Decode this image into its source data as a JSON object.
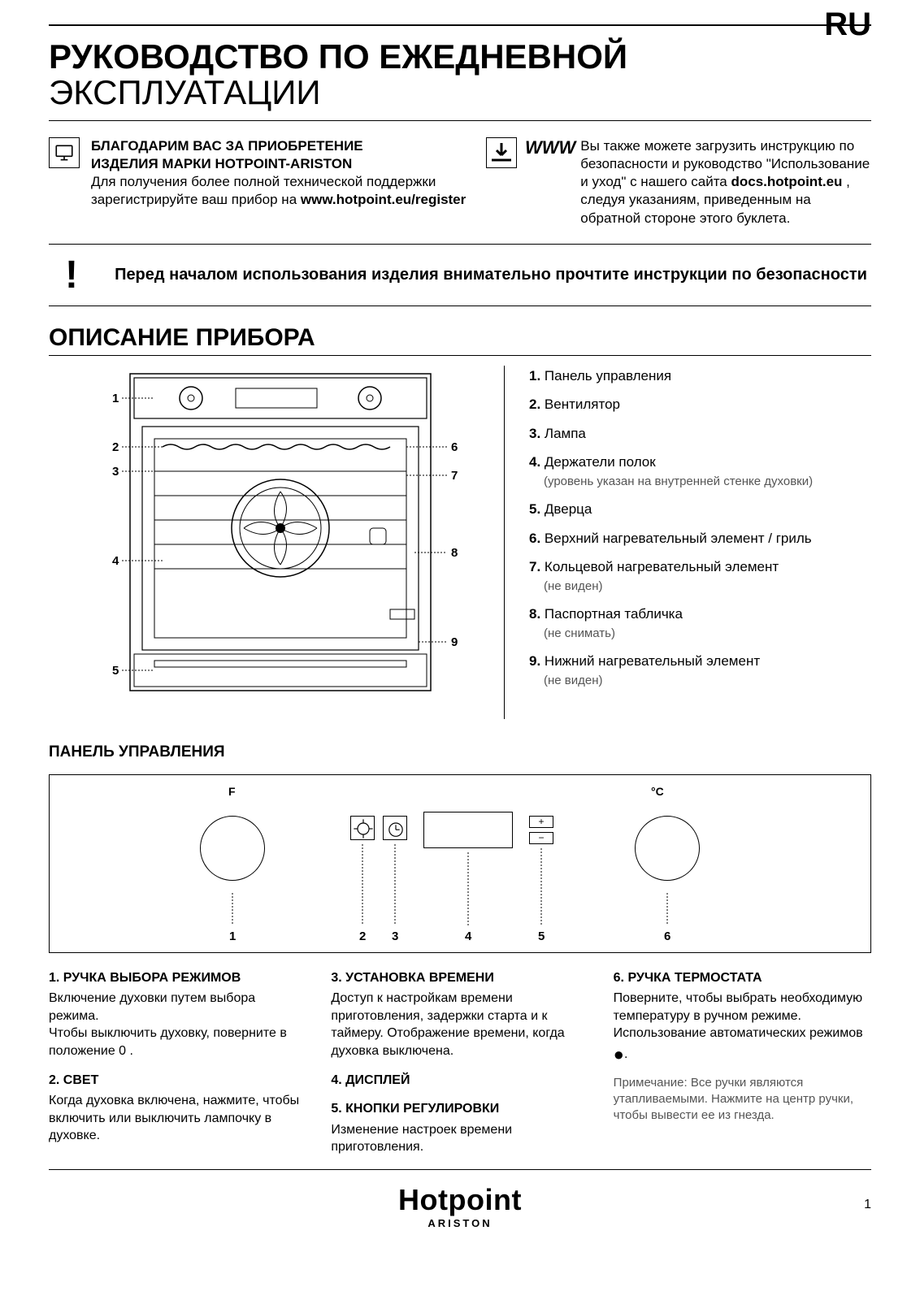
{
  "lang": "RU",
  "title_bold": "РУКОВОДСТВО ПО ЕЖЕДНЕВНОЙ",
  "title_light": "ЭКСПЛУАТАЦИИ",
  "intro_left_bold1": "БЛАГОДАРИМ ВАС ЗА ПРИОБРЕТЕНИЕ",
  "intro_left_bold2": "ИЗДЕЛИЯ МАРКИ HOTPOINT-ARISTON",
  "intro_left_text": "Для получения более полной технической поддержки зарегистрируйте ваш прибор на ",
  "intro_left_link": "www.hotpoint.eu/register",
  "www": "WWW",
  "intro_right_text1": "Вы также можете загрузить инструкцию по безопасности и руководство \"Использование и уход\" с нашего сайта ",
  "intro_right_link": "docs.hotpoint.eu",
  "intro_right_text2": ", следуя указаниям, приведенным на обратной стороне этого буклета.",
  "warn": "Перед началом использования изделия внимательно прочтите инструкции по безопасности",
  "section_desc": "ОПИСАНИЕ ПРИБОРА",
  "legend": [
    {
      "n": "1.",
      "t": "Панель управления"
    },
    {
      "n": "2.",
      "t": "Вентилятор"
    },
    {
      "n": "3.",
      "t": "Лампа"
    },
    {
      "n": "4.",
      "t": "Держатели полок",
      "sub": "(уровень указан на внутренней стенке духовки)"
    },
    {
      "n": "5.",
      "t": "Дверца"
    },
    {
      "n": "6.",
      "t": "Верхний нагревательный элемент / гриль"
    },
    {
      "n": "7.",
      "t": "Кольцевой нагревательный элемент",
      "sub": "(не виден)"
    },
    {
      "n": "8.",
      "t": "Паспортная табличка",
      "sub": "(не снимать)"
    },
    {
      "n": "9.",
      "t": "Нижний нагревательный элемент",
      "sub": "(не виден)"
    }
  ],
  "callouts_left": [
    "1",
    "2",
    "3",
    "4",
    "5"
  ],
  "callouts_right": [
    "6",
    "7",
    "8",
    "9"
  ],
  "subsection_panel": "ПАНЕЛЬ УПРАВЛЕНИЯ",
  "panel_labels": {
    "left": "F",
    "right": "°C"
  },
  "panel_nums": [
    "1",
    "2",
    "3",
    "4",
    "5",
    "6"
  ],
  "col1": {
    "h1": "1. РУЧКА ВЫБОРА РЕЖИМОВ",
    "p1a": "Включение духовки путем выбора режима.",
    "p1b": "Чтобы выключить духовку, поверните в положение  0 .",
    "h2": "2. СВЕТ",
    "p2": "Когда духовка включена, нажмите, чтобы включить или выключить лампочку в духовке."
  },
  "col2": {
    "h3": "3. УСТАНОВКА ВРЕМЕНИ",
    "p3": "Доступ к настройкам времени приготовления, задержки старта и к таймеру. Отображение времени, когда духовка выключена.",
    "h4": "4. ДИСПЛЕЙ",
    "h5": "5. КНОПКИ РЕГУЛИРОВКИ",
    "p5": "Изменение настроек времени приготовления."
  },
  "col3": {
    "h6": "6. РУЧКА ТЕРМОСТАТА",
    "p6": "Поверните, чтобы выбрать необходимую температуру в ручном режиме. Использование автоматических режимов ",
    "note": "Примечание: Все ручки являются утапливаемыми. Нажмите на центр ручки, чтобы вывести ее из гнезда."
  },
  "footer": {
    "brand": "Hotpoint",
    "sub": "ARISTON",
    "page": "1"
  },
  "colors": {
    "text": "#000000",
    "muted": "#555555",
    "bg": "#ffffff"
  }
}
